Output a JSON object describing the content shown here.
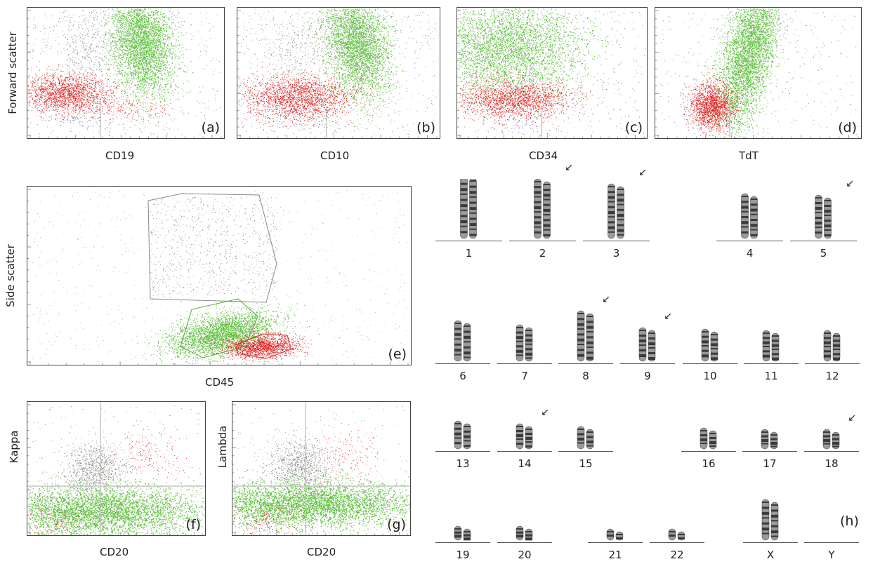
{
  "flow_panels": [
    {
      "id": "a",
      "label": "(a)",
      "xlabel": "CD19",
      "ylabel": "Forward scatter"
    },
    {
      "id": "b",
      "label": "(b)",
      "xlabel": "CD10",
      "ylabel": ""
    },
    {
      "id": "c",
      "label": "(c)",
      "xlabel": "CD34",
      "ylabel": ""
    },
    {
      "id": "d",
      "label": "(d)",
      "xlabel": "TdT",
      "ylabel": ""
    },
    {
      "id": "e",
      "label": "(e)",
      "xlabel": "CD45",
      "ylabel": "Side scatter"
    },
    {
      "id": "f",
      "label": "(f)",
      "xlabel": "CD20",
      "ylabel": "Kappa"
    },
    {
      "id": "g",
      "label": "(g)",
      "xlabel": "CD20",
      "ylabel": "Lambda"
    }
  ],
  "karyotype": {
    "label": "(h)",
    "rows": [
      [
        "1",
        "2",
        "3",
        "4",
        "5"
      ],
      [
        "6",
        "7",
        "8",
        "9",
        "10",
        "11",
        "12"
      ],
      [
        "13",
        "14",
        "15",
        "16",
        "17",
        "18"
      ],
      [
        "19",
        "20",
        "21",
        "22",
        "X",
        "Y"
      ]
    ],
    "marked_abnormal": [
      "2",
      "3",
      "5",
      "8",
      "9",
      "14",
      "18"
    ]
  },
  "colors": {
    "green": "#5cbf3a",
    "red": "#e02020",
    "gray": "#7a7a7a",
    "blue": "#2a3a9a"
  }
}
